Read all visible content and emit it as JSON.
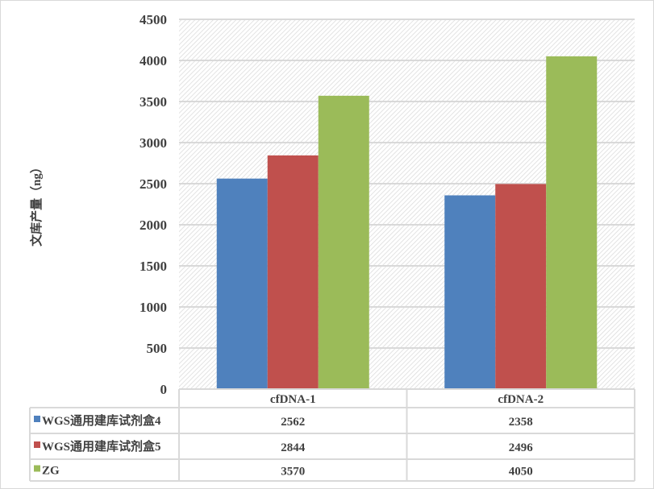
{
  "chart_data": {
    "type": "bar",
    "title": "",
    "xlabel": "",
    "ylabel": "文库产量（ng）",
    "ylim": [
      0,
      4500
    ],
    "yticks": [
      0,
      500,
      1000,
      1500,
      2000,
      2500,
      3000,
      3500,
      4000,
      4500
    ],
    "grid": true,
    "legend": "data-table",
    "categories": [
      "cfDNA-1",
      "cfDNA-2"
    ],
    "series": [
      {
        "name": "WGS通用建库试剂盒4",
        "color": "#4f81bd",
        "values": [
          2562,
          2358
        ]
      },
      {
        "name": "WGS通用建库试剂盒5",
        "color": "#c0504d",
        "values": [
          2844,
          2496
        ]
      },
      {
        "name": "ZG",
        "color": "#9bbb59",
        "values": [
          3570,
          4050
        ]
      }
    ]
  }
}
